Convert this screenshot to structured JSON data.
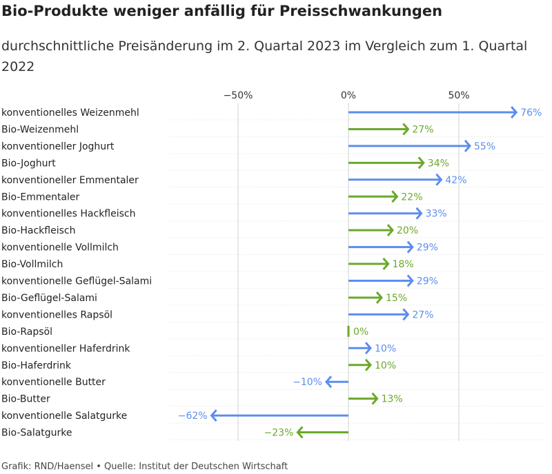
{
  "title": "Bio-Produkte weniger anfällig für Preisschwankungen",
  "subtitle": "durchschnittliche Preisänderung im 2. Quartal 2023 im Vergleich zum 1. Quartal 2022",
  "footer": "Grafik: RND/Haensel • Quelle: Institut der Deutschen Wirtschaft",
  "colors": {
    "conventional": "#5b8def",
    "bio": "#6aa829",
    "grid": "#d0d0d0"
  },
  "chart_data": {
    "type": "bar",
    "orientation": "horizontal",
    "xlim": [
      -75,
      80
    ],
    "xticks": [
      -50,
      0,
      50
    ],
    "xtick_labels": [
      "−50%",
      "0%",
      "50%"
    ],
    "grid": true,
    "series": [
      {
        "values": [
          76,
          null,
          55,
          null,
          42,
          null,
          33,
          null,
          29,
          null,
          29,
          null,
          27,
          null,
          10,
          null,
          -10,
          null,
          -62,
          null
        ]
      },
      {
        "values": [
          null,
          27,
          null,
          34,
          null,
          22,
          null,
          20,
          null,
          18,
          null,
          15,
          null,
          0,
          null,
          10,
          null,
          13,
          null,
          -23
        ]
      }
    ],
    "categories": [
      "konventionelles Weizenmehl",
      "Bio-Weizenmehl",
      "konventioneller Joghurt",
      "Bio-Joghurt",
      "konventioneller Emmentaler",
      "Bio-Emmentaler",
      "konventionelles Hackfleisch",
      "Bio-Hackfleisch",
      "konventionelle Vollmilch",
      "Bio-Vollmilch",
      "konventionelle Geflügel-Salami",
      "Bio-Geflügel-Salami",
      "konventionelles Rapsöl",
      "Bio-Rapsöl",
      "konventioneller Haferdrink",
      "Bio-Haferdrink",
      "konventionelle Butter",
      "Bio-Butter",
      "konventionelle Salatgurke",
      "Bio-Salatgurke"
    ],
    "values": [
      76,
      27,
      55,
      34,
      42,
      22,
      33,
      20,
      29,
      18,
      29,
      15,
      27,
      0,
      10,
      10,
      -10,
      13,
      -62,
      -23
    ],
    "value_labels": [
      "76%",
      "27%",
      "55%",
      "34%",
      "42%",
      "22%",
      "33%",
      "20%",
      "29%",
      "18%",
      "29%",
      "15%",
      "27%",
      "0%",
      "10%",
      "10%",
      "−10%",
      "13%",
      "−62%",
      "−23%"
    ]
  }
}
